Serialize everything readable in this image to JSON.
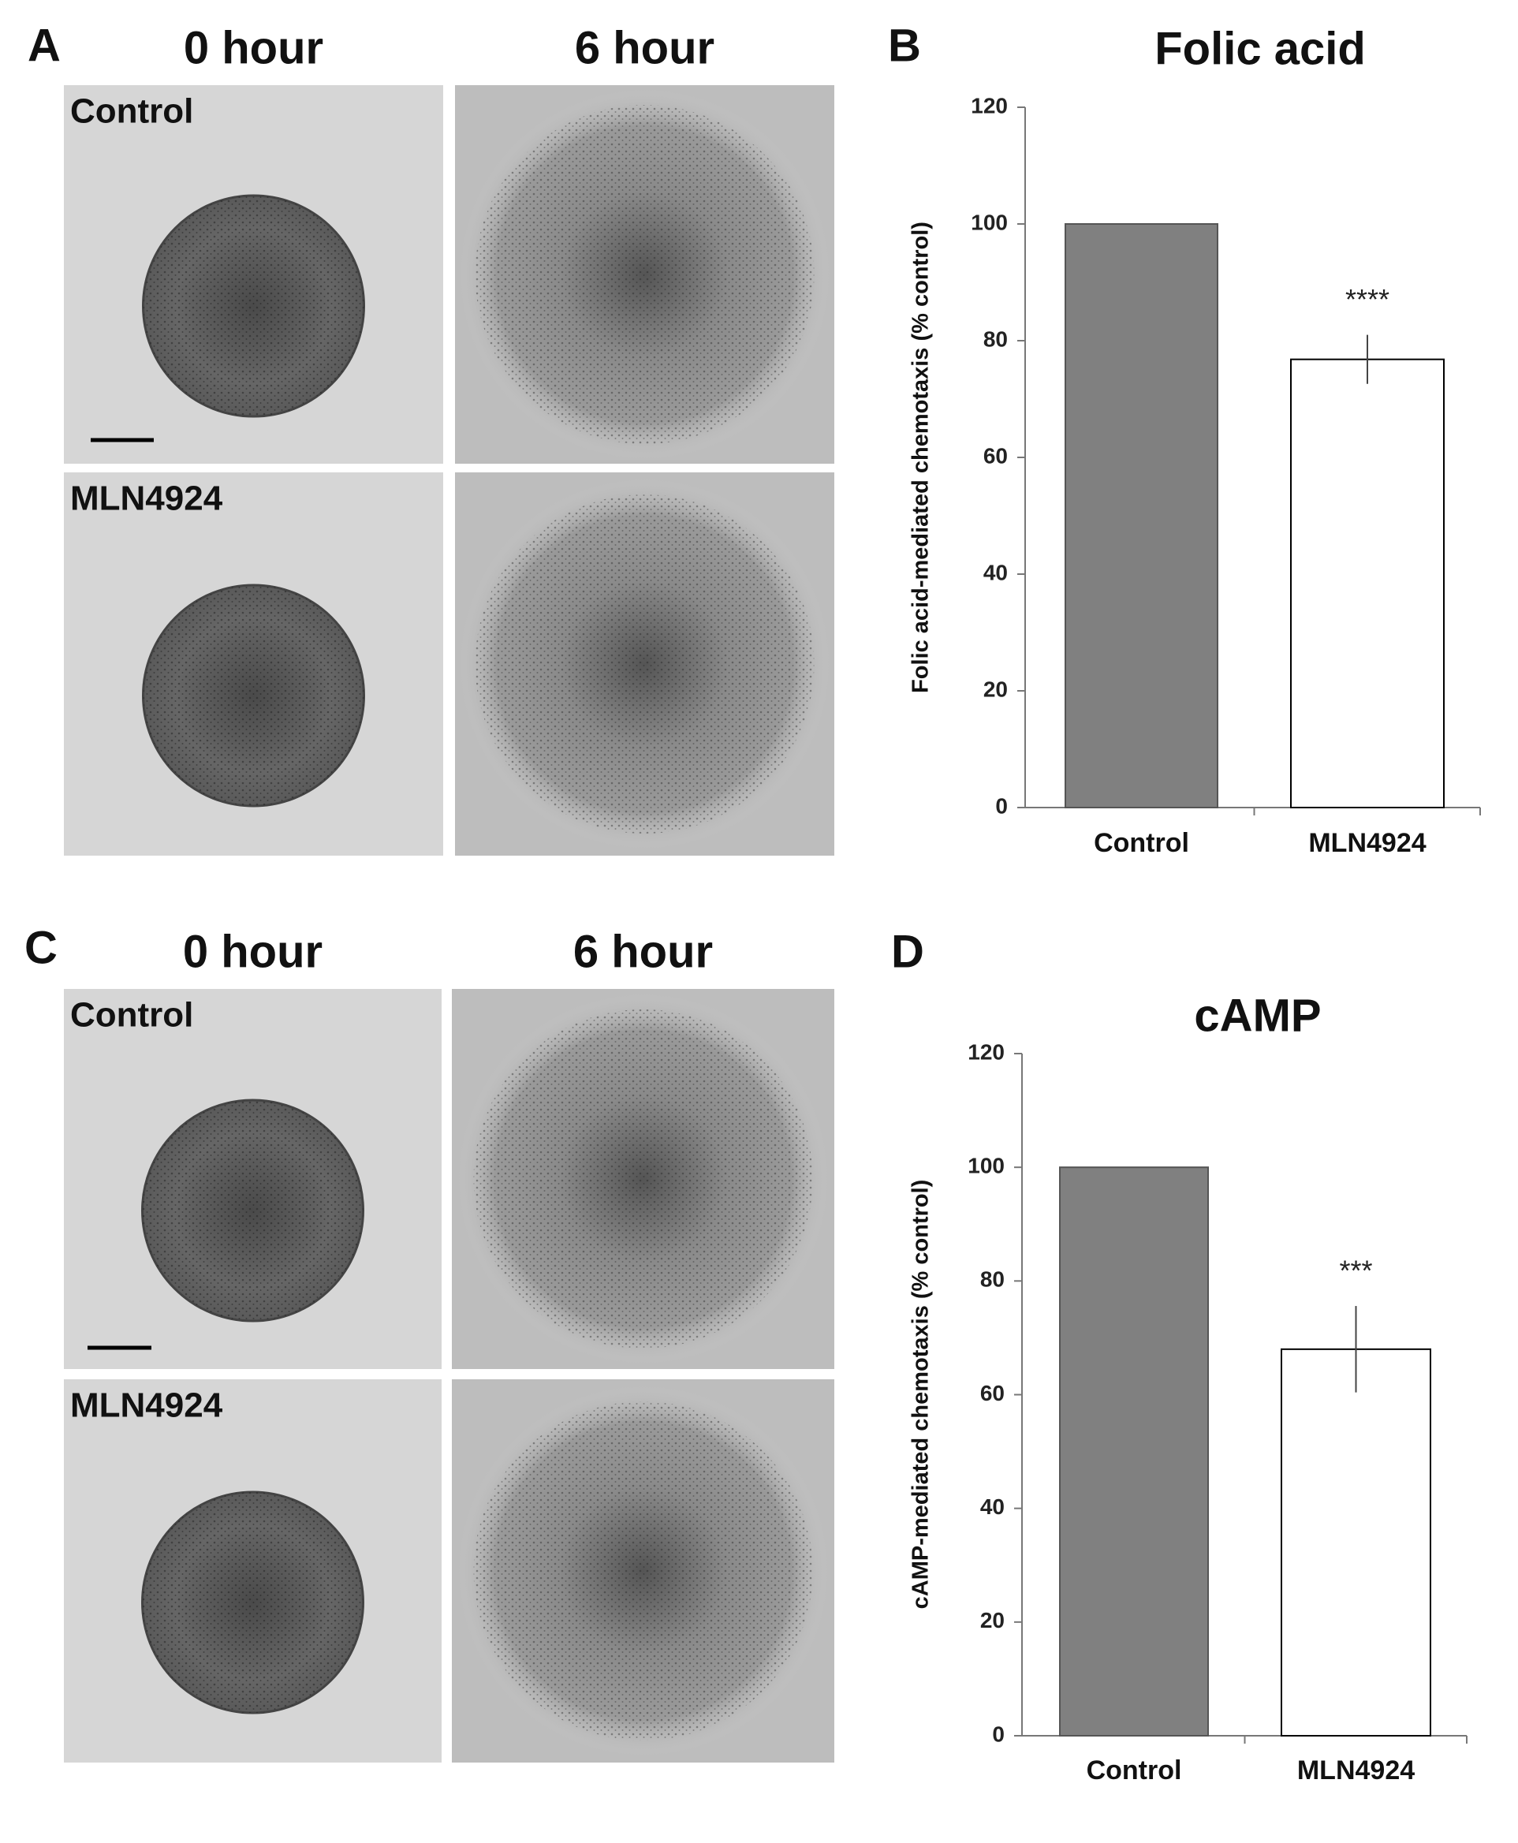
{
  "panels": [
    {
      "label": "A",
      "columns": [
        "0 hour",
        "6 hour"
      ],
      "rows": [
        "Control",
        "MLN4924"
      ]
    },
    {
      "label": "C",
      "columns": [
        "0 hour",
        "6 hour"
      ],
      "rows": [
        "Control",
        "MLN4924"
      ]
    }
  ],
  "chart_data": [
    {
      "type": "bar",
      "panel_label": "B",
      "title": "Folic acid",
      "y_label": "Folic acid-mediated chemotaxis (% control)",
      "categories": [
        "Control",
        "MLN4924"
      ],
      "values": [
        100,
        76.8
      ],
      "errors": [
        null,
        4.2
      ],
      "annotations": [
        null,
        "****"
      ],
      "colors": [
        "#808080",
        "#ffffff"
      ],
      "ylim": [
        0,
        120
      ],
      "yticks": [
        0,
        20,
        40,
        60,
        80,
        100,
        120
      ]
    },
    {
      "type": "bar",
      "panel_label": "D",
      "title": "cAMP",
      "y_label": "cAMP-mediated chemotaxis (% control)",
      "categories": [
        "Control",
        "MLN4924"
      ],
      "values": [
        100,
        68
      ],
      "errors": [
        null,
        7.6
      ],
      "annotations": [
        null,
        "***"
      ],
      "colors": [
        "#808080",
        "#ffffff"
      ],
      "ylim": [
        0,
        120
      ],
      "yticks": [
        0,
        20,
        40,
        60,
        80,
        100,
        120
      ]
    }
  ]
}
